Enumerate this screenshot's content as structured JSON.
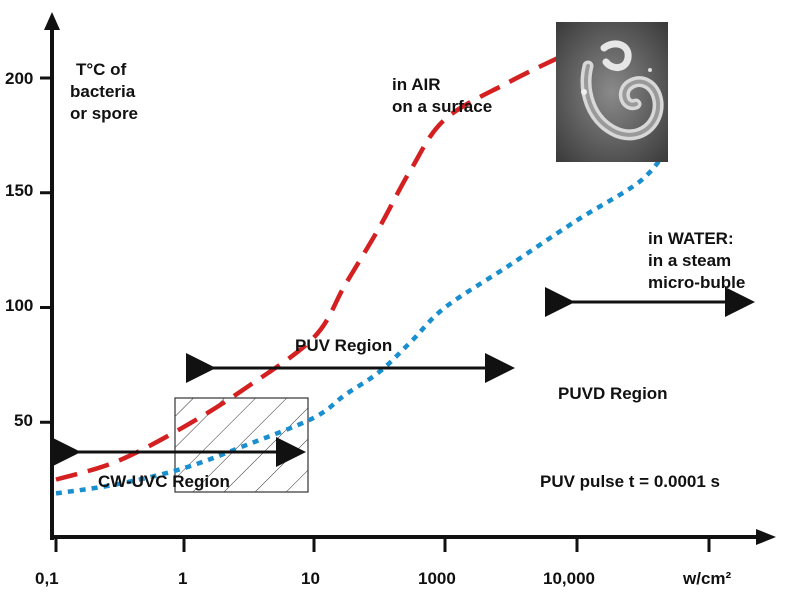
{
  "chart_data": {
    "type": "line",
    "ylabel_lines": [
      "T°C of",
      "bacteria",
      "or spore"
    ],
    "x_ticks": [
      "0,1",
      "1",
      "10",
      "1000",
      "10,000",
      "w/cm²"
    ],
    "y_ticks": [
      "50",
      "100",
      "150",
      "200"
    ],
    "ylim": [
      0,
      215
    ],
    "x_scale": "log",
    "grid": false,
    "series": [
      {
        "label_lines": [
          "in AIR",
          "on a surface"
        ],
        "style": "dashed",
        "color": "#d42020",
        "points": [
          [
            0.1,
            25
          ],
          [
            0.3,
            33
          ],
          [
            1,
            48
          ],
          [
            3,
            65
          ],
          [
            10,
            87
          ],
          [
            30,
            110
          ],
          [
            100,
            135
          ],
          [
            300,
            160
          ],
          [
            1000,
            182
          ],
          [
            3000,
            198
          ],
          [
            8000,
            210
          ]
        ]
      },
      {
        "label_lines": [
          "in WATER:",
          "in a steam",
          "micro-buble"
        ],
        "style": "dotted",
        "color": "#1a8fd0",
        "points": [
          [
            0.1,
            19
          ],
          [
            0.3,
            23
          ],
          [
            1,
            30
          ],
          [
            3,
            40
          ],
          [
            10,
            52
          ],
          [
            30,
            62
          ],
          [
            100,
            72
          ],
          [
            300,
            85
          ],
          [
            1000,
            100
          ],
          [
            3000,
            118
          ],
          [
            10000,
            138
          ],
          [
            30000,
            155
          ],
          [
            50000,
            170
          ]
        ]
      }
    ],
    "regions": [
      {
        "label": "CW-UVC Region",
        "range": [
          0.1,
          7
        ]
      },
      {
        "label": "PUV Region",
        "range": [
          1.2,
          3000
        ]
      },
      {
        "label": "PUVD Region",
        "range": [
          7000,
          50000
        ]
      }
    ],
    "hatched_box": {
      "x": [
        0.9,
        9
      ],
      "y": [
        15,
        57
      ]
    },
    "annotation": "PUV pulse t = 0.0001 s",
    "image": "sem-micrograph-bacterium"
  }
}
